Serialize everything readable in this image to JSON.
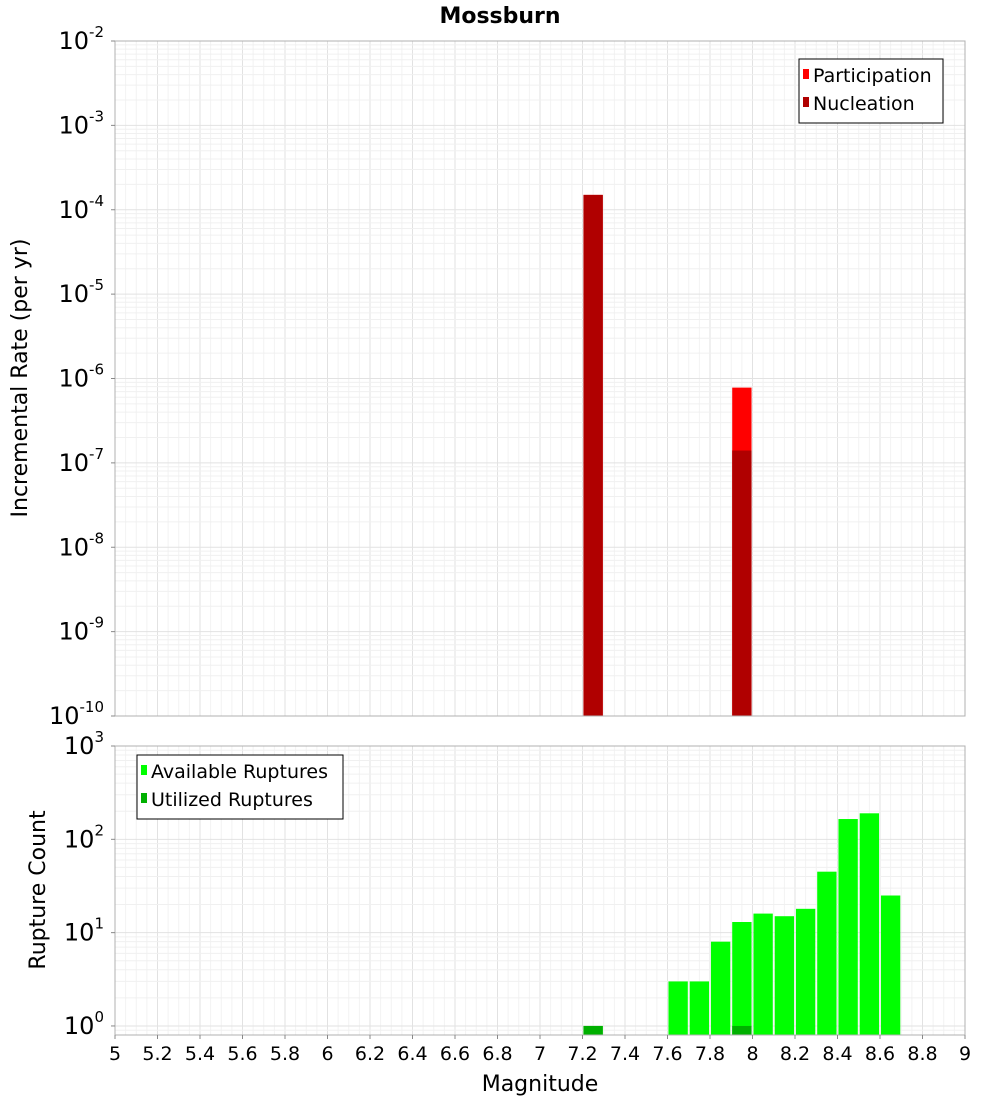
{
  "title": "Mossburn",
  "colors": {
    "participation": "#ff0000",
    "nucleation": "#b00000",
    "available": "#00ff00",
    "utilized": "#00b000",
    "grid": "#e8e8e8",
    "axis_border": "#b0b0b0"
  },
  "chart_data": [
    {
      "type": "bar",
      "name": "rate-panel",
      "ylabel": "Incremental Rate (per yr)",
      "yscale": "log",
      "ylim": [
        1e-10,
        0.01
      ],
      "y_ticks": [
        {
          "base": "10",
          "exp": "-2"
        },
        {
          "base": "10",
          "exp": "-3"
        },
        {
          "base": "10",
          "exp": "-4"
        },
        {
          "base": "10",
          "exp": "-5"
        },
        {
          "base": "10",
          "exp": "-6"
        },
        {
          "base": "10",
          "exp": "-7"
        },
        {
          "base": "10",
          "exp": "-8"
        },
        {
          "base": "10",
          "exp": "-9"
        },
        {
          "base": "10",
          "exp": "-10"
        }
      ],
      "legend_position": "top-right",
      "series": [
        {
          "name": "Participation",
          "color": "#ff0000",
          "points": [
            {
              "x": 7.25,
              "y": 0.00015
            },
            {
              "x": 7.95,
              "y": 7.8e-07
            }
          ]
        },
        {
          "name": "Nucleation",
          "color": "#b00000",
          "points": [
            {
              "x": 7.25,
              "y": 0.00015
            },
            {
              "x": 7.95,
              "y": 1.4e-07
            }
          ]
        }
      ]
    },
    {
      "type": "bar",
      "name": "count-panel",
      "xlabel": "Magnitude",
      "ylabel": "Rupture Count",
      "yscale": "log",
      "ylim": [
        0.8,
        1000
      ],
      "xlim": [
        5,
        9
      ],
      "x_ticks": [
        "5",
        "5.2",
        "5.4",
        "5.6",
        "5.8",
        "6",
        "6.2",
        "6.4",
        "6.6",
        "6.8",
        "7",
        "7.2",
        "7.4",
        "7.6",
        "7.8",
        "8",
        "8.2",
        "8.4",
        "8.6",
        "8.8",
        "9"
      ],
      "y_ticks": [
        {
          "base": "10",
          "exp": "3"
        },
        {
          "base": "10",
          "exp": "2"
        },
        {
          "base": "10",
          "exp": "1"
        },
        {
          "base": "10",
          "exp": "0"
        }
      ],
      "legend_position": "top-left",
      "series": [
        {
          "name": "Available Ruptures",
          "color": "#00ff00",
          "points": [
            {
              "x": 7.25,
              "y": 1
            },
            {
              "x": 7.65,
              "y": 3
            },
            {
              "x": 7.75,
              "y": 3
            },
            {
              "x": 7.85,
              "y": 8
            },
            {
              "x": 7.95,
              "y": 13
            },
            {
              "x": 8.05,
              "y": 16
            },
            {
              "x": 8.15,
              "y": 15
            },
            {
              "x": 8.25,
              "y": 18
            },
            {
              "x": 8.35,
              "y": 45
            },
            {
              "x": 8.45,
              "y": 165
            },
            {
              "x": 8.55,
              "y": 190
            },
            {
              "x": 8.65,
              "y": 25
            }
          ]
        },
        {
          "name": "Utilized Ruptures",
          "color": "#00b000",
          "points": [
            {
              "x": 7.25,
              "y": 1
            },
            {
              "x": 7.95,
              "y": 1
            }
          ]
        }
      ]
    }
  ]
}
